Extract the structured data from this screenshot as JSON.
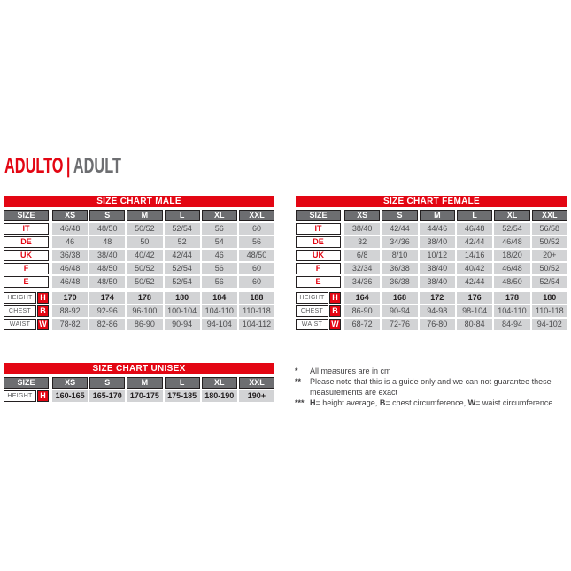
{
  "title": {
    "primary": "ADULTO",
    "separator": "|",
    "secondary": "ADULT"
  },
  "colors": {
    "red": "#e30613",
    "header_gray": "#6d6e71",
    "cell_gray": "#d2d3d5",
    "title_gray": "#6d6e71"
  },
  "tables": [
    {
      "id": "male-table",
      "title": "SIZE CHART MALE",
      "size_label": "SIZE",
      "columns": [
        "XS",
        "S",
        "M",
        "L",
        "XL",
        "XXL"
      ],
      "size_rows": [
        {
          "label": "IT",
          "values": [
            "46/48",
            "48/50",
            "50/52",
            "52/54",
            "56",
            "60"
          ]
        },
        {
          "label": "DE",
          "values": [
            "46",
            "48",
            "50",
            "52",
            "54",
            "56"
          ]
        },
        {
          "label": "UK",
          "values": [
            "36/38",
            "38/40",
            "40/42",
            "42/44",
            "46",
            "48/50"
          ]
        },
        {
          "label": "F",
          "values": [
            "46/48",
            "48/50",
            "50/52",
            "52/54",
            "56",
            "60"
          ]
        },
        {
          "label": "E",
          "values": [
            "46/48",
            "48/50",
            "50/52",
            "52/54",
            "56",
            "60"
          ]
        }
      ],
      "measure_rows": [
        {
          "label": "HEIGHT",
          "badge": "H",
          "bold": true,
          "values": [
            "170",
            "174",
            "178",
            "180",
            "184",
            "188"
          ]
        },
        {
          "label": "CHEST",
          "badge": "B",
          "bold": false,
          "values": [
            "88-92",
            "92-96",
            "96-100",
            "100-104",
            "104-110",
            "110-118"
          ]
        },
        {
          "label": "WAIST",
          "badge": "W",
          "bold": false,
          "values": [
            "78-82",
            "82-86",
            "86-90",
            "90-94",
            "94-104",
            "104-112"
          ]
        }
      ]
    },
    {
      "id": "female-table",
      "title": "SIZE CHART FEMALE",
      "size_label": "SIZE",
      "columns": [
        "XS",
        "S",
        "M",
        "L",
        "XL",
        "XXL"
      ],
      "size_rows": [
        {
          "label": "IT",
          "values": [
            "38/40",
            "42/44",
            "44/46",
            "46/48",
            "52/54",
            "56/58"
          ]
        },
        {
          "label": "DE",
          "values": [
            "32",
            "34/36",
            "38/40",
            "42/44",
            "46/48",
            "50/52"
          ]
        },
        {
          "label": "UK",
          "values": [
            "6/8",
            "8/10",
            "10/12",
            "14/16",
            "18/20",
            "20+"
          ]
        },
        {
          "label": "F",
          "values": [
            "32/34",
            "36/38",
            "38/40",
            "40/42",
            "46/48",
            "50/52"
          ]
        },
        {
          "label": "E",
          "values": [
            "34/36",
            "36/38",
            "38/40",
            "42/44",
            "48/50",
            "52/54"
          ]
        }
      ],
      "measure_rows": [
        {
          "label": "HEIGHT",
          "badge": "H",
          "bold": true,
          "values": [
            "164",
            "168",
            "172",
            "176",
            "178",
            "180"
          ]
        },
        {
          "label": "CHEST",
          "badge": "B",
          "bold": false,
          "values": [
            "86-90",
            "90-94",
            "94-98",
            "98-104",
            "104-110",
            "110-118"
          ]
        },
        {
          "label": "WAIST",
          "badge": "W",
          "bold": false,
          "values": [
            "68-72",
            "72-76",
            "76-80",
            "80-84",
            "84-94",
            "94-102"
          ]
        }
      ]
    },
    {
      "id": "unisex-table",
      "title": "SIZE CHART UNISEX",
      "size_label": "SIZE",
      "columns": [
        "XS",
        "S",
        "M",
        "L",
        "XL",
        "XXL"
      ],
      "size_rows": [],
      "measure_rows": [
        {
          "label": "HEIGHT",
          "badge": "H",
          "bold": true,
          "values": [
            "160-165",
            "165-170",
            "170-175",
            "175-185",
            "180-190",
            "190+"
          ]
        }
      ]
    }
  ],
  "footnotes": [
    {
      "marker": "*",
      "segments": [
        {
          "text": "All measures are in cm",
          "bold": false
        }
      ]
    },
    {
      "marker": "**",
      "segments": [
        {
          "text": "Please note that this is a guide only and we can not guarantee these measurements are exact",
          "bold": false
        }
      ]
    },
    {
      "marker": "***",
      "segments": [
        {
          "text": "H",
          "bold": true
        },
        {
          "text": "= height average, ",
          "bold": false
        },
        {
          "text": "B",
          "bold": true
        },
        {
          "text": "= chest circumference, ",
          "bold": false
        },
        {
          "text": "W",
          "bold": true
        },
        {
          "text": "= waist circumference",
          "bold": false
        }
      ]
    }
  ]
}
